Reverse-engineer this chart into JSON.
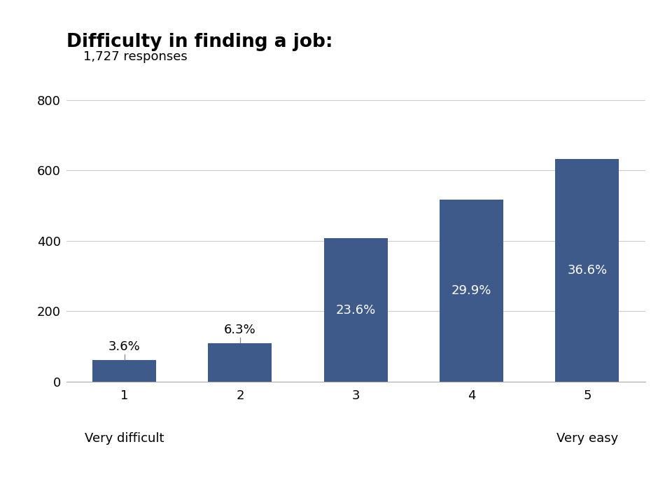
{
  "title": "Difficulty in finding a job:",
  "subtitle": "1,727 responses",
  "categories": [
    "1",
    "2",
    "3",
    "4",
    "5"
  ],
  "values": [
    62,
    109,
    407,
    516,
    632
  ],
  "percentages": [
    "3.6%",
    "6.3%",
    "23.6%",
    "29.9%",
    "36.6%"
  ],
  "bar_color": "#3D5A8A",
  "xlabel_left": "Very difficult",
  "xlabel_right": "Very easy",
  "ylim": [
    0,
    840
  ],
  "yticks": [
    0,
    200,
    400,
    600,
    800
  ],
  "background_color": "#ffffff",
  "title_fontsize": 19,
  "subtitle_fontsize": 13,
  "label_fontsize": 13,
  "tick_fontsize": 13,
  "pct_fontsize": 13,
  "bar_width": 0.55
}
